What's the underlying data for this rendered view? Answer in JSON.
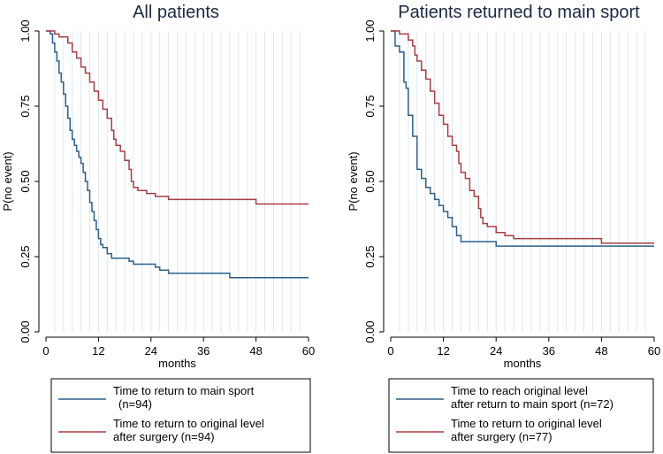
{
  "chart_data": [
    {
      "type": "line",
      "title": "All patients",
      "xlabel": "months",
      "ylabel": "P(no event)",
      "xlim": [
        0,
        60
      ],
      "ylim": [
        0,
        1
      ],
      "xticks": [
        0,
        12,
        24,
        36,
        48,
        60
      ],
      "xtick_labels": [
        "0",
        "12",
        "24",
        "36",
        "48",
        "60"
      ],
      "yticks": [
        0,
        0.25,
        0.5,
        0.75,
        1
      ],
      "ytick_labels": [
        "0.00",
        "0.25",
        "0.50",
        "0.75",
        "1.00"
      ],
      "grid": "vertical",
      "legend": {
        "position": "below",
        "entries": [
          {
            "color": "#2b5f8a",
            "line1": "Time to return to main sport",
            "line2": "(n=94)"
          },
          {
            "color": "#a83d43",
            "line1": "Time to return to original level",
            "line2": "after surgery (n=94)"
          }
        ]
      },
      "series": [
        {
          "name": "Time to return to main sport (n=94)",
          "color": "#2b5f8a",
          "steps": [
            [
              0,
              1.0
            ],
            [
              1,
              0.99
            ],
            [
              1.5,
              0.96
            ],
            [
              2,
              0.93
            ],
            [
              2.5,
              0.9
            ],
            [
              3,
              0.86
            ],
            [
              3.5,
              0.83
            ],
            [
              4,
              0.79
            ],
            [
              4.5,
              0.75
            ],
            [
              5,
              0.71
            ],
            [
              5.5,
              0.67
            ],
            [
              6,
              0.64
            ],
            [
              6.5,
              0.62
            ],
            [
              7,
              0.6
            ],
            [
              7.5,
              0.58
            ],
            [
              8,
              0.56
            ],
            [
              8.5,
              0.53
            ],
            [
              9,
              0.5
            ],
            [
              9.5,
              0.47
            ],
            [
              10,
              0.43
            ],
            [
              10.5,
              0.4
            ],
            [
              11,
              0.37
            ],
            [
              11.5,
              0.34
            ],
            [
              12,
              0.31
            ],
            [
              12.5,
              0.29
            ],
            [
              13,
              0.28
            ],
            [
              14,
              0.26
            ],
            [
              15,
              0.245
            ],
            [
              19,
              0.235
            ],
            [
              20,
              0.225
            ],
            [
              25,
              0.215
            ],
            [
              26,
              0.205
            ],
            [
              28,
              0.195
            ],
            [
              42,
              0.18
            ],
            [
              60,
              0.18
            ]
          ]
        },
        {
          "name": "Time to return to original level after surgery (n=94)",
          "color": "#a83d43",
          "steps": [
            [
              0,
              1.0
            ],
            [
              2,
              0.99
            ],
            [
              3,
              0.98
            ],
            [
              5,
              0.96
            ],
            [
              6,
              0.93
            ],
            [
              7,
              0.91
            ],
            [
              8,
              0.88
            ],
            [
              9,
              0.86
            ],
            [
              10,
              0.83
            ],
            [
              11,
              0.8
            ],
            [
              12,
              0.77
            ],
            [
              13,
              0.74
            ],
            [
              14,
              0.71
            ],
            [
              15,
              0.67
            ],
            [
              15.5,
              0.64
            ],
            [
              16,
              0.62
            ],
            [
              17,
              0.6
            ],
            [
              18,
              0.57
            ],
            [
              19,
              0.54
            ],
            [
              19.5,
              0.5
            ],
            [
              20,
              0.48
            ],
            [
              21,
              0.47
            ],
            [
              23,
              0.46
            ],
            [
              25,
              0.45
            ],
            [
              28,
              0.44
            ],
            [
              48,
              0.425
            ],
            [
              60,
              0.425
            ]
          ]
        }
      ]
    },
    {
      "type": "line",
      "title": "Patients returned to main sport",
      "xlabel": "months",
      "ylabel": "P(no event)",
      "xlim": [
        0,
        60
      ],
      "ylim": [
        0,
        1
      ],
      "xticks": [
        0,
        12,
        24,
        36,
        48,
        60
      ],
      "xtick_labels": [
        "0",
        "12",
        "24",
        "36",
        "48",
        "60"
      ],
      "yticks": [
        0,
        0.25,
        0.5,
        0.75,
        1
      ],
      "ytick_labels": [
        "0.00",
        "0.25",
        "0.50",
        "0.75",
        "1.00"
      ],
      "grid": "vertical",
      "legend": {
        "position": "below",
        "entries": [
          {
            "color": "#2b5f8a",
            "line1": "Time to reach original level",
            "line2": "after return to main sport (n=72)"
          },
          {
            "color": "#a83d43",
            "line1": "Time to return to original level",
            "line2": "after surgery (n=77)"
          }
        ]
      },
      "series": [
        {
          "name": "Time to reach original level after return to main sport (n=72)",
          "color": "#2b5f8a",
          "steps": [
            [
              0,
              1.0
            ],
            [
              1,
              0.95
            ],
            [
              2,
              0.93
            ],
            [
              3,
              0.83
            ],
            [
              3.5,
              0.81
            ],
            [
              4,
              0.72
            ],
            [
              5,
              0.65
            ],
            [
              6,
              0.54
            ],
            [
              7,
              0.51
            ],
            [
              8,
              0.48
            ],
            [
              9,
              0.46
            ],
            [
              10,
              0.44
            ],
            [
              11,
              0.42
            ],
            [
              12,
              0.4
            ],
            [
              13,
              0.38
            ],
            [
              14,
              0.35
            ],
            [
              15,
              0.32
            ],
            [
              16,
              0.3
            ],
            [
              24,
              0.285
            ],
            [
              60,
              0.285
            ]
          ]
        },
        {
          "name": "Time to return to original level after surgery (n=77)",
          "color": "#a83d43",
          "steps": [
            [
              0,
              1.0
            ],
            [
              2,
              0.99
            ],
            [
              4,
              0.97
            ],
            [
              5,
              0.95
            ],
            [
              5.5,
              0.92
            ],
            [
              6,
              0.9
            ],
            [
              7,
              0.87
            ],
            [
              8,
              0.84
            ],
            [
              9,
              0.8
            ],
            [
              10,
              0.76
            ],
            [
              11,
              0.72
            ],
            [
              12,
              0.69
            ],
            [
              13,
              0.65
            ],
            [
              14,
              0.62
            ],
            [
              15,
              0.6
            ],
            [
              15.5,
              0.56
            ],
            [
              16,
              0.53
            ],
            [
              17,
              0.51
            ],
            [
              18,
              0.47
            ],
            [
              19,
              0.45
            ],
            [
              20,
              0.41
            ],
            [
              20.5,
              0.38
            ],
            [
              21,
              0.36
            ],
            [
              22,
              0.35
            ],
            [
              24,
              0.33
            ],
            [
              26,
              0.32
            ],
            [
              28,
              0.31
            ],
            [
              48,
              0.295
            ],
            [
              60,
              0.295
            ]
          ]
        }
      ]
    }
  ]
}
